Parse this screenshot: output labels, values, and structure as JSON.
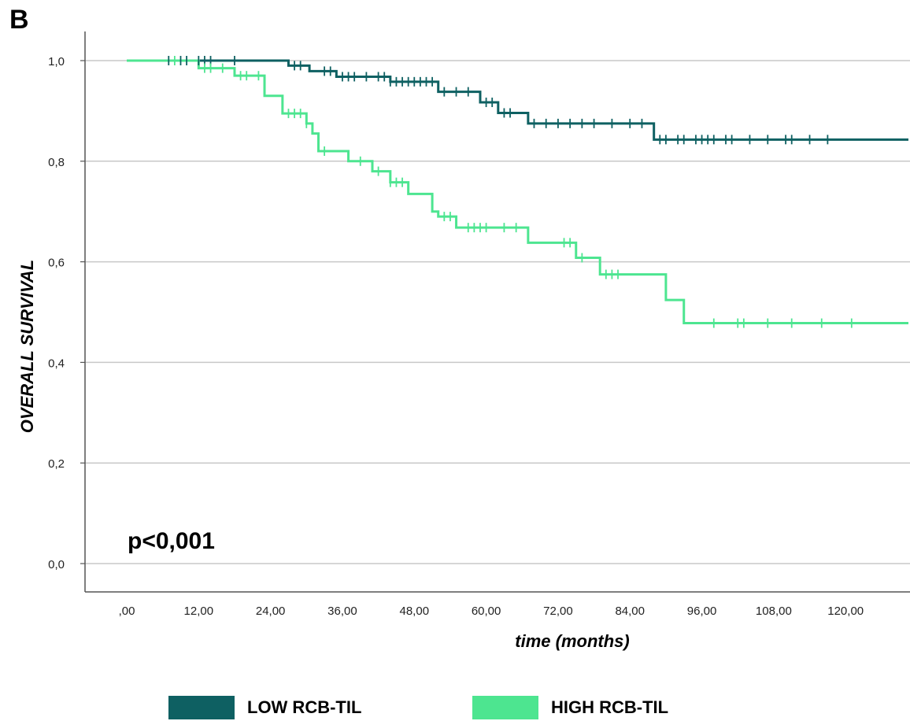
{
  "panel_label": "B",
  "colors": {
    "low": "#0e6062",
    "high": "#4de590",
    "grid": "#c8c8c8",
    "axis": "#555555"
  },
  "chart_data": {
    "type": "line",
    "subtype": "kaplan-meier step",
    "xlabel": "time (months)",
    "ylabel": "OVERALL SURVIVAL",
    "xlim": [
      0,
      130
    ],
    "ylim": [
      0.0,
      1.0
    ],
    "x_ticks": [
      0,
      12,
      24,
      36,
      48,
      60,
      72,
      84,
      96,
      108,
      120
    ],
    "x_tick_labels": [
      ",00",
      "12,00",
      "24,00",
      "36,00",
      "48,00",
      "60,00",
      "72,00",
      "84,00",
      "96,00",
      "108,00",
      "120,00"
    ],
    "y_ticks": [
      0.0,
      0.2,
      0.4,
      0.6,
      0.8,
      1.0
    ],
    "y_tick_labels": [
      "0,0",
      "0,2",
      "0,4",
      "0,6",
      "0,8",
      "1,0"
    ],
    "grid": "horizontal",
    "legend_position": "bottom",
    "annotation": "p<0,001",
    "series": [
      {
        "name": "LOW RCB-TIL",
        "color": "#0e6062",
        "steps": [
          [
            0,
            1.0
          ],
          [
            27,
            0.99
          ],
          [
            30.5,
            0.979
          ],
          [
            35,
            0.968
          ],
          [
            44,
            0.958
          ],
          [
            52,
            0.938
          ],
          [
            59,
            0.917
          ],
          [
            62,
            0.896
          ],
          [
            67,
            0.875
          ],
          [
            88,
            0.843
          ],
          [
            131,
            0.843
          ]
        ],
        "censor_times": [
          7,
          9,
          10,
          12,
          13,
          14,
          18,
          28,
          29,
          33,
          34,
          36,
          37,
          38,
          40,
          42,
          43,
          44,
          45,
          46,
          47,
          48,
          49,
          50,
          51,
          53,
          55,
          57,
          60,
          61,
          63,
          64,
          68,
          70,
          72,
          74,
          76,
          78,
          81,
          84,
          86,
          89,
          90,
          92,
          93,
          95,
          96,
          97,
          98,
          100,
          101,
          104,
          107,
          110,
          111,
          114,
          117
        ]
      },
      {
        "name": "HIGH RCB-TIL",
        "color": "#4de590",
        "steps": [
          [
            0,
            1.0
          ],
          [
            12,
            0.985
          ],
          [
            18,
            0.97
          ],
          [
            23,
            0.93
          ],
          [
            26,
            0.895
          ],
          [
            30,
            0.875
          ],
          [
            31,
            0.855
          ],
          [
            32,
            0.82
          ],
          [
            37,
            0.8
          ],
          [
            41,
            0.78
          ],
          [
            44,
            0.758
          ],
          [
            47,
            0.735
          ],
          [
            51,
            0.7
          ],
          [
            52,
            0.69
          ],
          [
            55,
            0.668
          ],
          [
            67,
            0.638
          ],
          [
            75,
            0.608
          ],
          [
            79,
            0.575
          ],
          [
            90,
            0.524
          ],
          [
            93,
            0.478
          ],
          [
            131,
            0.478
          ]
        ],
        "censor_times": [
          8,
          13,
          14,
          16,
          19,
          20,
          22,
          27,
          28,
          29,
          30,
          33,
          39,
          42,
          44,
          45,
          46,
          53,
          54,
          57,
          58,
          59,
          60,
          63,
          65,
          73,
          74,
          76,
          80,
          81,
          82,
          98,
          102,
          103,
          107,
          111,
          116,
          121
        ]
      }
    ]
  }
}
